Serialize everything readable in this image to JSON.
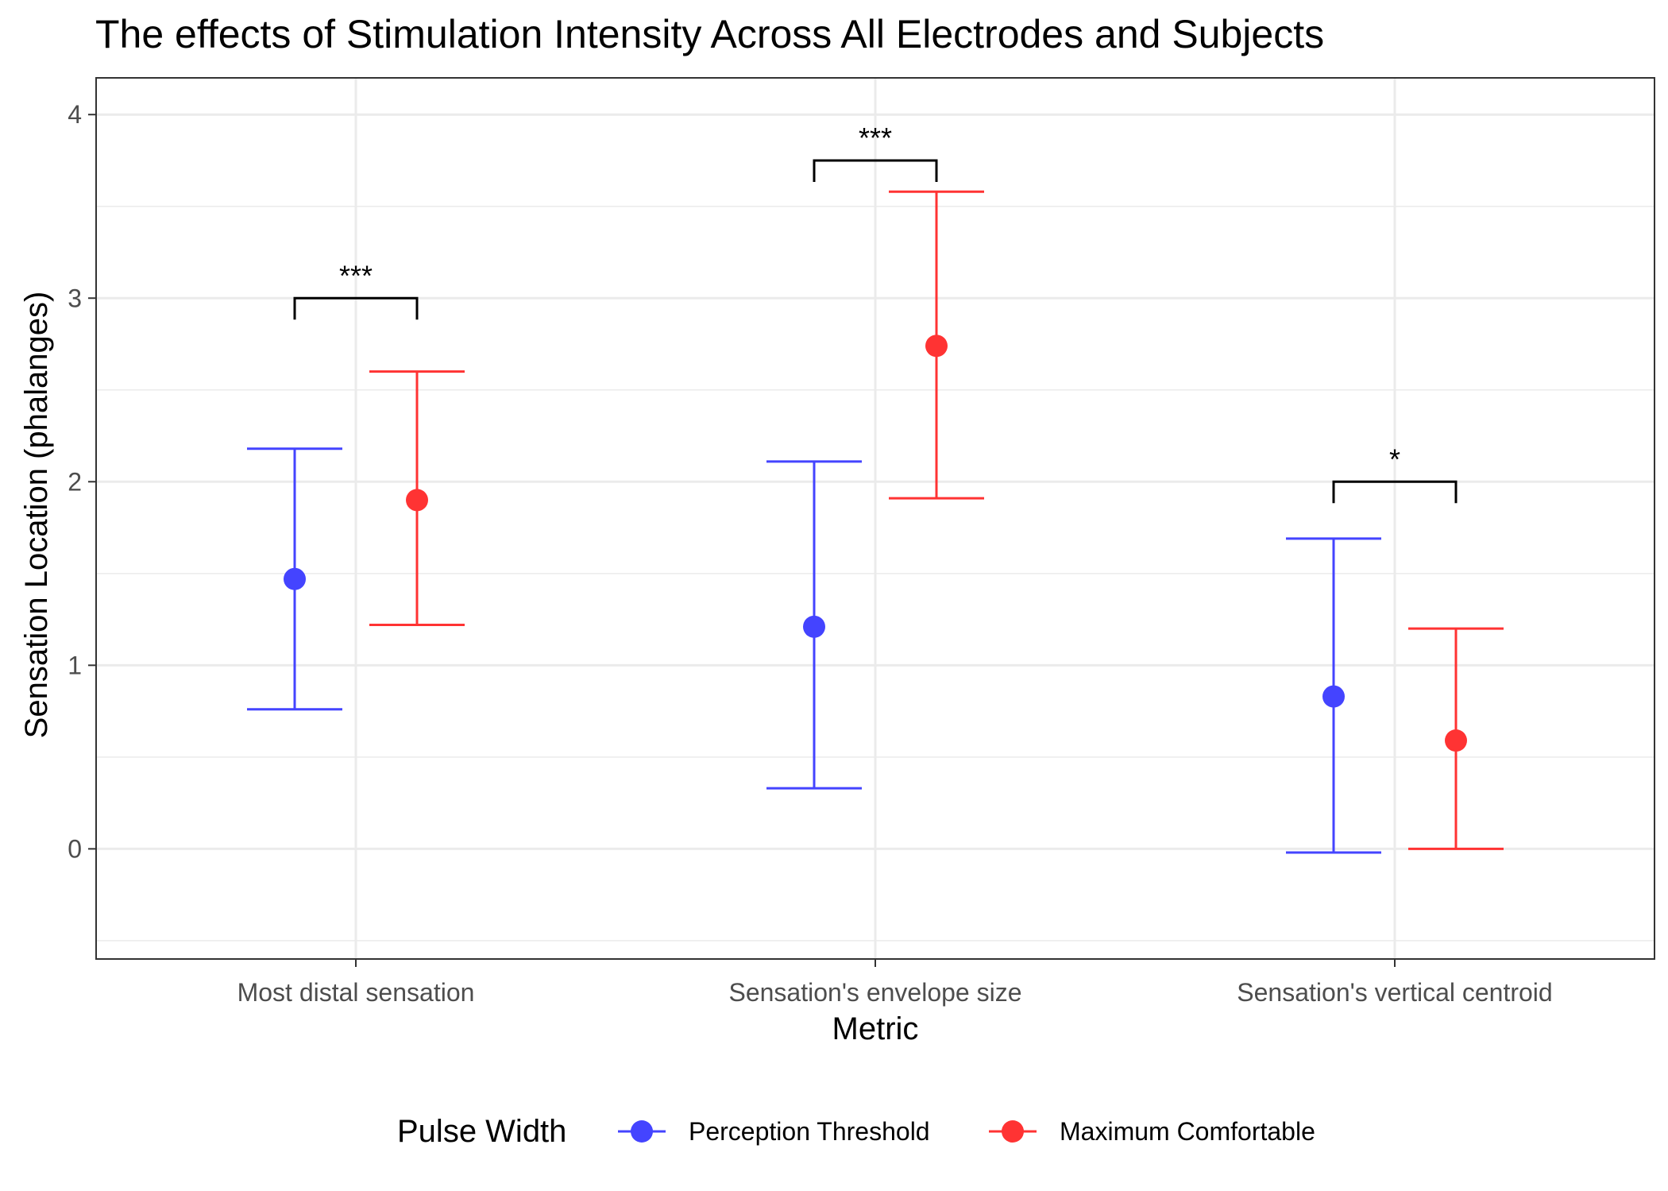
{
  "chart_data": {
    "type": "scatter",
    "title": "The effects of Stimulation Intensity Across All Electrodes and Subjects",
    "xlabel": "Metric",
    "ylabel": "Sensation Location (phalanges)",
    "categories": [
      "Most distal sensation",
      "Sensation's envelope size",
      "Sensation's vertical centroid"
    ],
    "ylim": [
      -0.6,
      4.2
    ],
    "yticks": [
      0,
      1,
      2,
      3,
      4
    ],
    "grid": true,
    "legend": {
      "title": "Pulse Width",
      "position": "bottom"
    },
    "series": [
      {
        "name": "Perception Threshold",
        "color": "#4444ff",
        "values": [
          1.47,
          1.21,
          0.83
        ],
        "lower": [
          0.76,
          0.33,
          -0.02
        ],
        "upper": [
          2.18,
          2.11,
          1.69
        ]
      },
      {
        "name": "Maximum Comfortable",
        "color": "#ff3333",
        "values": [
          1.9,
          2.74,
          0.59
        ],
        "lower": [
          1.22,
          1.91,
          0.0
        ],
        "upper": [
          2.6,
          3.58,
          1.2
        ]
      }
    ],
    "significance": [
      {
        "category": "Most distal sensation",
        "label": "***",
        "y": 3.0
      },
      {
        "category": "Sensation's envelope size",
        "label": "***",
        "y": 3.75
      },
      {
        "category": "Sensation's vertical centroid",
        "label": "*",
        "y": 2.0
      }
    ]
  }
}
